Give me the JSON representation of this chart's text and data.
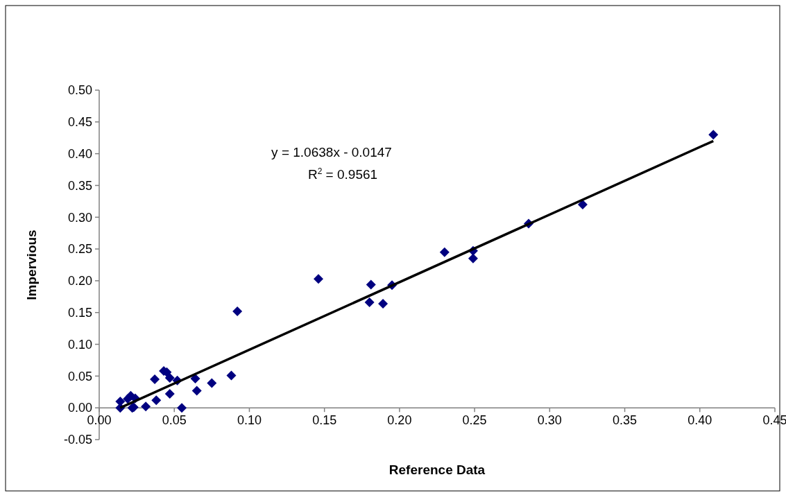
{
  "chart_data": {
    "type": "scatter",
    "xlabel": "Reference Data",
    "ylabel": "Impervious",
    "annotations": [
      "y = 1.0638x - 0.0147",
      "R$^{2}$ = 0.9561"
    ],
    "xlim": [
      0,
      0.45
    ],
    "ylim": [
      -0.05,
      0.5
    ],
    "xticks": [
      {
        "value": 0,
        "label": "0.00"
      },
      {
        "value": 0.05,
        "label": "0.05"
      },
      {
        "value": 0.1,
        "label": "0.10"
      },
      {
        "value": 0.15,
        "label": "0.15"
      },
      {
        "value": 0.2,
        "label": "0.20"
      },
      {
        "value": 0.25,
        "label": "0.25"
      },
      {
        "value": 0.3,
        "label": "0.30"
      },
      {
        "value": 0.35,
        "label": "0.35"
      },
      {
        "value": 0.4,
        "label": "0.40"
      },
      {
        "value": 0.45,
        "label": "0.45"
      }
    ],
    "yticks": [
      {
        "value": -0.05,
        "label": "-0.05"
      },
      {
        "value": 0,
        "label": "0.00"
      },
      {
        "value": 0.05,
        "label": "0.05"
      },
      {
        "value": 0.1,
        "label": "0.10"
      },
      {
        "value": 0.15,
        "label": "0.15"
      },
      {
        "value": 0.2,
        "label": "0.20"
      },
      {
        "value": 0.25,
        "label": "0.25"
      },
      {
        "value": 0.3,
        "label": "0.30"
      },
      {
        "value": 0.35,
        "label": "0.35"
      },
      {
        "value": 0.4,
        "label": "0.40"
      },
      {
        "value": 0.45,
        "label": "0.45"
      },
      {
        "value": 0.5,
        "label": "0.50"
      }
    ],
    "grid": false,
    "series": [
      {
        "color": "#000080",
        "marker": "diamond",
        "x": [
          0.014,
          0.014,
          0.019,
          0.021,
          0.024,
          0.022,
          0.023,
          0.031,
          0.037,
          0.038,
          0.043,
          0.045,
          0.047,
          0.047,
          0.052,
          0.055,
          0.064,
          0.065,
          0.075,
          0.088,
          0.092,
          0.146,
          0.181,
          0.195,
          0.18,
          0.189,
          0.23,
          0.249,
          0.249,
          0.286,
          0.322,
          0.409
        ],
        "values": [
          0.01,
          0.0,
          0.014,
          0.019,
          0.015,
          0.0,
          0.001,
          0.002,
          0.045,
          0.012,
          0.058,
          0.056,
          0.047,
          0.022,
          0.043,
          0.0,
          0.046,
          0.027,
          0.039,
          0.051,
          0.152,
          0.203,
          0.194,
          0.193,
          0.166,
          0.164,
          0.245,
          0.247,
          0.235,
          0.29,
          0.32,
          0.43
        ]
      },
      {
        "type": "line",
        "marker": "none",
        "color": "#000000",
        "x": [
          0.014,
          0.409
        ],
        "values": [
          0.0,
          0.42
        ]
      }
    ]
  }
}
